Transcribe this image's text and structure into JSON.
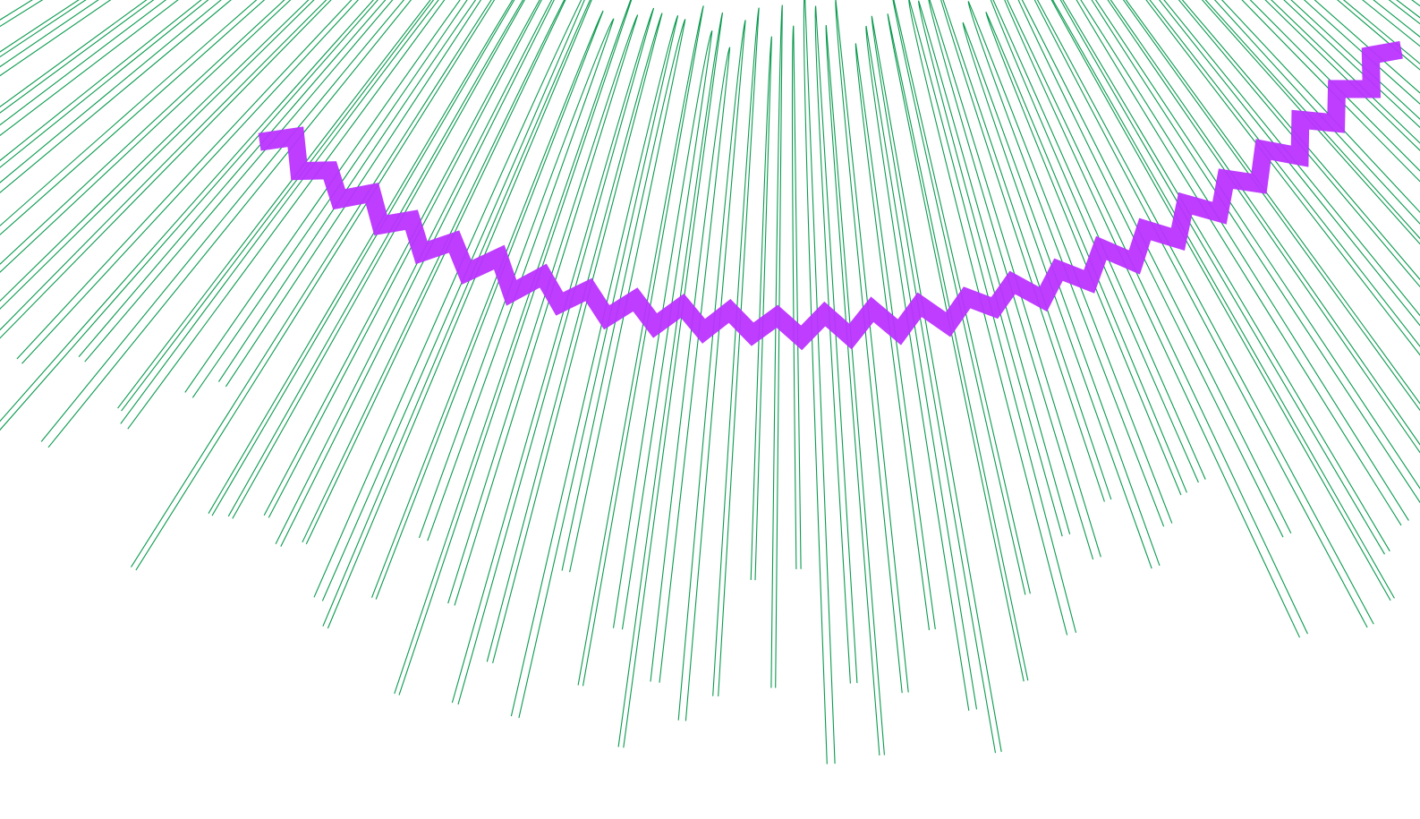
{
  "colors": {
    "background": "#ffffff",
    "spikes": "#0a9a4e",
    "band": "#bb33ff"
  },
  "spike_count": 118,
  "band_segment_count": 52
}
